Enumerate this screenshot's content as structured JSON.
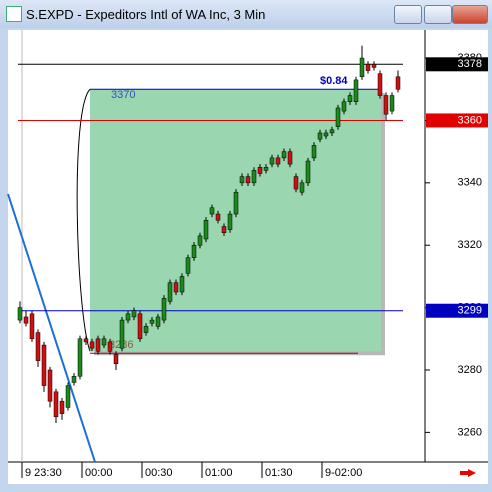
{
  "window": {
    "title": "S.EXPD - Expeditors Intl of WA Inc, 3 Min"
  },
  "chart_data": {
    "type": "candlestick",
    "up_color": "#1a8a1a",
    "down_color": "#d01010",
    "ylim": [
      3250.5,
      3389
    ],
    "yticks": [
      3260,
      3280,
      3300,
      3320,
      3340,
      3360,
      3380
    ],
    "xticks": [
      {
        "value": 0,
        "label": "9 23:30"
      },
      {
        "value": 10,
        "label": "00:00"
      },
      {
        "value": 20,
        "label": "00:30"
      },
      {
        "value": 30,
        "label": "01:00"
      },
      {
        "value": 40,
        "label": "01:30"
      },
      {
        "value": 50,
        "label": "9-02:00"
      }
    ],
    "open": [
      3296,
      3297,
      3298,
      3292,
      3288,
      3280,
      3273,
      3270,
      3268,
      3276,
      3278,
      3290,
      3289,
      3290,
      3288,
      3289,
      3285,
      3287,
      3296,
      3297,
      3298,
      3292,
      3295,
      3294,
      3296,
      3302,
      3308,
      3305,
      3311,
      3316,
      3320,
      3322,
      3330,
      3330,
      3326,
      3325,
      3330,
      3340,
      3342,
      3340,
      3345,
      3344,
      3346,
      3348,
      3348,
      3350,
      3342,
      3337,
      3340,
      3348,
      3354,
      3355,
      3356,
      3358,
      3363,
      3366,
      3366,
      3374,
      3378,
      3378,
      3375,
      3368,
      3363,
      3374
    ],
    "high": [
      3302,
      3299,
      3299,
      3293,
      3289,
      3281,
      3274,
      3271,
      3276,
      3279,
      3291,
      3291,
      3290,
      3291,
      3291,
      3290,
      3286,
      3297,
      3299,
      3300,
      3299,
      3295,
      3297,
      3298,
      3304,
      3309,
      3309,
      3311,
      3317,
      3321,
      3324,
      3329,
      3333,
      3331,
      3327,
      3331,
      3338,
      3343,
      3343,
      3345,
      3346,
      3346,
      3349,
      3349,
      3351,
      3351,
      3343,
      3341,
      3348,
      3353,
      3357,
      3357,
      3358,
      3365,
      3367,
      3369,
      3374,
      3384,
      3379,
      3379,
      3376,
      3369,
      3369,
      3376
    ],
    "low": [
      3295,
      3294,
      3289,
      3281,
      3273,
      3268,
      3263,
      3264,
      3267,
      3275,
      3277,
      3288,
      3286,
      3285,
      3287,
      3285,
      3280,
      3286,
      3295,
      3296,
      3289,
      3291,
      3294,
      3293,
      3295,
      3301,
      3304,
      3304,
      3310,
      3315,
      3319,
      3321,
      3329,
      3327,
      3323,
      3324,
      3329,
      3339,
      3339,
      3339,
      3342,
      3343,
      3345,
      3345,
      3347,
      3345,
      3337,
      3336,
      3339,
      3347,
      3353,
      3354,
      3355,
      3357,
      3362,
      3365,
      3365,
      3373,
      3375,
      3376,
      3367,
      3360,
      3362,
      3369
    ],
    "close": [
      3300,
      3295,
      3290,
      3283,
      3275,
      3270,
      3265,
      3266,
      3275,
      3278,
      3290,
      3289,
      3287,
      3286,
      3290,
      3286,
      3282,
      3296,
      3298,
      3299,
      3290,
      3294,
      3296,
      3297,
      3303,
      3308,
      3305,
      3310,
      3316,
      3320,
      3323,
      3328,
      3332,
      3328,
      3324,
      3330,
      3337,
      3342,
      3340,
      3344,
      3343,
      3345,
      3348,
      3346,
      3350,
      3346,
      3338,
      3340,
      3347,
      3352,
      3356,
      3356,
      3357,
      3364,
      3366,
      3368,
      3373,
      3380,
      3376,
      3377,
      3368,
      3362,
      3368,
      3370
    ],
    "levels": [
      {
        "value": 3378,
        "color": "#000000"
      },
      {
        "value": 3360,
        "color": "#e00000"
      },
      {
        "value": 3299,
        "color": "#0000c0"
      }
    ],
    "zone": {
      "top": 3370,
      "bottom": 3286,
      "range_label": "$0.84",
      "color": "#9ad6b0"
    }
  }
}
